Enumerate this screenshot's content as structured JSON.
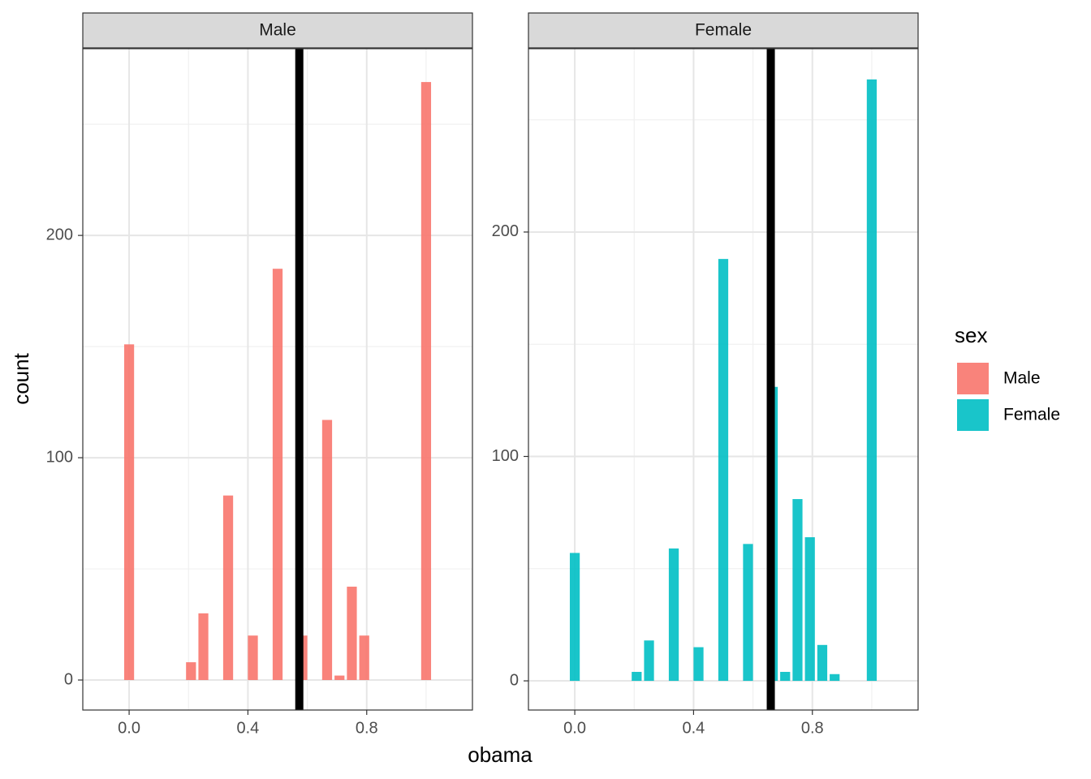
{
  "chart_data": [
    {
      "type": "histogram",
      "title": "Male",
      "bins": [
        -0.0208,
        0.0208,
        0.0625,
        0.1042,
        0.1458,
        0.1875,
        0.2292,
        0.2708,
        0.3125,
        0.3542,
        0.3958,
        0.4375,
        0.4792,
        0.5208,
        0.5625,
        0.6042,
        0.6458,
        0.6875,
        0.7292,
        0.7708,
        0.8125,
        0.8542,
        0.8958,
        0.9375,
        0.9792,
        1.0208
      ],
      "series": [
        {
          "name": "Male",
          "color": "#F8766D",
          "values": [
            151,
            0,
            0,
            0,
            0,
            8,
            30,
            0,
            83,
            0,
            20,
            0,
            185,
            0,
            20,
            0,
            117,
            2,
            42,
            20,
            0,
            0,
            0,
            0,
            269
          ]
        }
      ],
      "mean_line": 0.573,
      "xlim": [
        -0.156,
        1.156
      ],
      "ylim": [
        -13.5,
        284
      ],
      "xticks": [
        {
          "value": 0,
          "label": "0.0"
        },
        0.4,
        0.8
      ],
      "xminorticks": [
        0.2,
        0.6,
        1
      ],
      "yticks": [
        0,
        100,
        200
      ],
      "yminorticks": [
        50,
        150,
        250
      ],
      "grid": true
    },
    {
      "type": "histogram",
      "title": "Female",
      "bins": [
        -0.0208,
        0.0208,
        0.0625,
        0.1042,
        0.1458,
        0.1875,
        0.2292,
        0.2708,
        0.3125,
        0.3542,
        0.3958,
        0.4375,
        0.4792,
        0.5208,
        0.5625,
        0.6042,
        0.6458,
        0.6875,
        0.7292,
        0.7708,
        0.8125,
        0.8542,
        0.8958,
        0.9375,
        0.9792,
        1.0208
      ],
      "series": [
        {
          "name": "Female",
          "color": "#00BFC4",
          "values": [
            57,
            0,
            0,
            0,
            0,
            4,
            18,
            0,
            59,
            0,
            15,
            0,
            188,
            0,
            61,
            0,
            131,
            4,
            81,
            64,
            16,
            3,
            0,
            0,
            268
          ]
        }
      ],
      "mean_line": 0.66,
      "xlim": [
        -0.156,
        1.156
      ],
      "ylim": [
        -13,
        281.7
      ],
      "xticks": [
        {
          "value": 0,
          "label": "0.0"
        },
        0.4,
        0.8
      ],
      "xminorticks": [
        0.2,
        0.6,
        1
      ],
      "yticks": [
        0,
        100,
        200
      ],
      "yminorticks": [
        50,
        150,
        250
      ],
      "grid": true
    }
  ],
  "x_label": "obama",
  "y_label": "count",
  "legend_title": "sex"
}
